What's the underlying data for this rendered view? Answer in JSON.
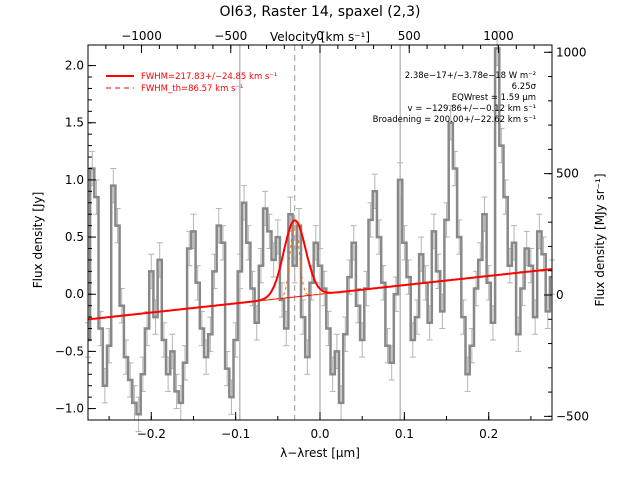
{
  "chart_data": {
    "type": "line",
    "title": "OI63, Raster 14, spaxel (2,3)",
    "xlabel_bottom": "λ−λrest [μm]",
    "xlabel_top": "Velocity [km s⁻¹]",
    "ylabel_left": "Flux density [Jy]",
    "ylabel_right": "Flux density [MJy sr⁻¹]",
    "xlim": [
      -0.275,
      0.275
    ],
    "ylim": [
      -1.1,
      2.18
    ],
    "ylim_right": [
      -515,
      1030
    ],
    "xlim_top": [
      -1300,
      1300
    ],
    "x_ticks": [
      -0.2,
      -0.1,
      0.0,
      0.1,
      0.2
    ],
    "x_tick_labels": [
      "−0.2",
      "−0.1",
      "0.0",
      "0.1",
      "0.2"
    ],
    "y_ticks": [
      -1.0,
      -0.5,
      0.0,
      0.5,
      1.0,
      1.5,
      2.0
    ],
    "y_tick_labels": [
      "−1.0",
      "−0.5",
      "0.0",
      "0.5",
      "1.0",
      "1.5",
      "2.0"
    ],
    "top_ticks": [
      -1000,
      -500,
      0,
      500,
      1000
    ],
    "top_tick_labels": [
      "−1000",
      "−500",
      "0",
      "500",
      "1000"
    ],
    "right_ticks": [
      -500,
      0,
      500,
      1000
    ],
    "right_tick_labels": [
      "−500",
      "0",
      "500",
      "1000"
    ],
    "vertical_lines": [
      -0.095,
      0.0,
      0.095
    ],
    "dashed_line": -0.03,
    "legend": [
      {
        "label": "FWHM=217.83+/−24.85 km s⁻¹",
        "style": "solid",
        "color": "#ff0000"
      },
      {
        "label": "FWHM_th=86.57 km s⁻¹",
        "style": "dashed",
        "color": "#ff0000"
      }
    ],
    "annotations": [
      "2.38e−17+/−3.78e−18 W m⁻²",
      "6.25σ",
      "EQWrest = 1.59 μm",
      "v = −129.86+/−−0.12 km s⁻¹",
      "Broadening = 200.00+/−22.62 km s⁻¹"
    ],
    "fit": {
      "continuum_intercept": 0.0,
      "continuum_slope": 0.8,
      "gaussian_center": -0.03,
      "gaussian_amp": 0.67,
      "gaussian_sigma": 0.013,
      "thermal_sigma": 0.0052
    },
    "series": [
      {
        "name": "spectrum",
        "color": "#888888",
        "x": [
          -0.275,
          -0.27,
          -0.265,
          -0.26,
          -0.255,
          -0.25,
          -0.245,
          -0.24,
          -0.235,
          -0.23,
          -0.225,
          -0.22,
          -0.215,
          -0.21,
          -0.205,
          -0.2,
          -0.195,
          -0.19,
          -0.185,
          -0.18,
          -0.175,
          -0.17,
          -0.165,
          -0.16,
          -0.155,
          -0.15,
          -0.145,
          -0.14,
          -0.135,
          -0.13,
          -0.125,
          -0.12,
          -0.115,
          -0.11,
          -0.105,
          -0.1,
          -0.095,
          -0.09,
          -0.085,
          -0.08,
          -0.075,
          -0.07,
          -0.065,
          -0.06,
          -0.055,
          -0.05,
          -0.045,
          -0.04,
          -0.035,
          -0.03,
          -0.025,
          -0.02,
          -0.015,
          -0.01,
          -0.005,
          0.0,
          0.005,
          0.01,
          0.015,
          0.02,
          0.025,
          0.03,
          0.035,
          0.04,
          0.045,
          0.05,
          0.055,
          0.06,
          0.065,
          0.07,
          0.075,
          0.08,
          0.085,
          0.09,
          0.095,
          0.1,
          0.105,
          0.11,
          0.115,
          0.12,
          0.125,
          0.13,
          0.135,
          0.14,
          0.145,
          0.15,
          0.155,
          0.16,
          0.165,
          0.17,
          0.175,
          0.18,
          0.185,
          0.19,
          0.195,
          0.2,
          0.205,
          0.21,
          0.215,
          0.22,
          0.225,
          0.23,
          0.235,
          0.24,
          0.245,
          0.25,
          0.255,
          0.26,
          0.265,
          0.27,
          0.275
        ],
        "y": [
          -0.4,
          1.1,
          0.85,
          -0.3,
          -0.8,
          -0.45,
          0.95,
          0.6,
          -0.1,
          -0.55,
          -0.75,
          -0.95,
          -1.05,
          -0.7,
          -0.3,
          0.2,
          -0.2,
          0.3,
          -0.4,
          -0.7,
          -0.5,
          -0.85,
          -0.95,
          -0.6,
          0.4,
          0.55,
          0.1,
          -0.3,
          -0.55,
          -0.35,
          0.2,
          0.6,
          0.45,
          -0.65,
          -0.9,
          -0.4,
          0.2,
          0.8,
          0.45,
          0.05,
          -0.25,
          0.25,
          0.75,
          0.55,
          0.3,
          0.5,
          -0.05,
          -0.3,
          0.7,
          0.25,
          0.6,
          -0.2,
          -0.55,
          0.1,
          0.45,
          0.25,
          0.05,
          -0.3,
          -0.7,
          -0.5,
          -0.95,
          -0.35,
          0.15,
          0.45,
          -0.1,
          -0.4,
          0.05,
          0.65,
          0.9,
          0.5,
          0.1,
          -0.45,
          -0.6,
          0.0,
          1.0,
          0.45,
          0.15,
          -0.4,
          -0.2,
          0.35,
          0.1,
          -0.25,
          0.55,
          0.2,
          -0.15,
          0.65,
          1.5,
          1.1,
          0.5,
          -0.2,
          -0.7,
          -0.45,
          0.05,
          0.3,
          0.7,
          0.1,
          -0.25,
          2.15,
          1.3,
          0.85,
          0.25,
          0.45,
          -0.35,
          0.05,
          0.4,
          0.25,
          -0.2,
          0.55,
          0.35,
          -0.15,
          0.15
        ],
        "errors": [
          0.15,
          0.15,
          0.15,
          0.15,
          0.15,
          0.15,
          0.15,
          0.15,
          0.15,
          0.15,
          0.15,
          0.15,
          0.15,
          0.15,
          0.15,
          0.15,
          0.15,
          0.15,
          0.15,
          0.15,
          0.15,
          0.15,
          0.15,
          0.15,
          0.15,
          0.15,
          0.15,
          0.15,
          0.15,
          0.15,
          0.15,
          0.15,
          0.15,
          0.15,
          0.15,
          0.15,
          0.15,
          0.15,
          0.15,
          0.15,
          0.15,
          0.15,
          0.15,
          0.15,
          0.15,
          0.15,
          0.15,
          0.15,
          0.15,
          0.15,
          0.15,
          0.15,
          0.15,
          0.15,
          0.15,
          0.15,
          0.15,
          0.15,
          0.15,
          0.15,
          0.15,
          0.15,
          0.15,
          0.15,
          0.15,
          0.15,
          0.15,
          0.15,
          0.15,
          0.15,
          0.15,
          0.15,
          0.15,
          0.15,
          0.15,
          0.15,
          0.15,
          0.15,
          0.15,
          0.15,
          0.15,
          0.15,
          0.15,
          0.15,
          0.15,
          0.15,
          0.15,
          0.15,
          0.15,
          0.15,
          0.15,
          0.15,
          0.15,
          0.15,
          0.15,
          0.15,
          0.15,
          0.15,
          0.15,
          0.15,
          0.15,
          0.15,
          0.15,
          0.15,
          0.15,
          0.15,
          0.15,
          0.15,
          0.15,
          0.15,
          0.15
        ]
      }
    ]
  }
}
